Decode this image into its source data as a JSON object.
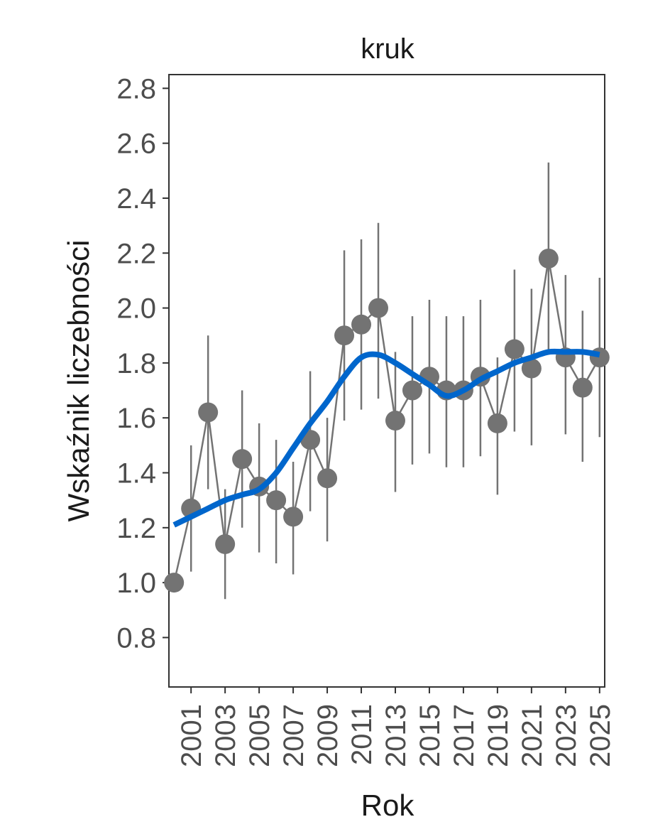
{
  "chart_data": {
    "type": "line",
    "title": "kruk",
    "xlabel": "Rok",
    "ylabel": "Wskaźnik liczebności",
    "xlim": [
      1999.7,
      2025.3
    ],
    "ylim": [
      0.62,
      2.85
    ],
    "x_ticks": [
      2001,
      2003,
      2005,
      2007,
      2009,
      2011,
      2013,
      2015,
      2017,
      2019,
      2021,
      2023,
      2025
    ],
    "x_tick_labels": [
      "2001",
      "2003",
      "2005",
      "2007",
      "2009",
      "2011",
      "2013",
      "2015",
      "2017",
      "2019",
      "2021",
      "2023",
      "2025"
    ],
    "y_ticks": [
      0.8,
      1.0,
      1.2,
      1.4,
      1.6,
      1.8,
      2.0,
      2.2,
      2.4,
      2.6,
      2.8
    ],
    "y_tick_labels": [
      "0.8",
      "1.0",
      "1.2",
      "1.4",
      "1.6",
      "1.8",
      "2.0",
      "2.2",
      "2.4",
      "2.6",
      "2.8"
    ],
    "grid": false,
    "series": [
      {
        "x": [
          2000,
          2001,
          2002,
          2003,
          2004,
          2005,
          2006,
          2007,
          2008,
          2009,
          2010,
          2011,
          2012,
          2013,
          2014,
          2015,
          2016,
          2017,
          2018,
          2019,
          2020,
          2021,
          2022,
          2023,
          2024,
          2025
        ],
        "y": [
          1.0,
          1.27,
          1.62,
          1.14,
          1.45,
          1.35,
          1.3,
          1.24,
          1.52,
          1.38,
          1.9,
          1.94,
          2.0,
          1.59,
          1.7,
          1.75,
          1.7,
          1.7,
          1.75,
          1.58,
          1.85,
          1.78,
          2.18,
          1.82,
          1.71,
          1.82
        ],
        "lower": [
          null,
          1.04,
          1.34,
          0.94,
          1.2,
          1.11,
          1.07,
          1.03,
          1.26,
          1.15,
          1.59,
          1.63,
          1.67,
          1.33,
          1.43,
          1.47,
          1.42,
          1.42,
          1.46,
          1.32,
          1.55,
          1.5,
          1.83,
          1.54,
          1.44,
          1.53
        ],
        "upper": [
          null,
          1.5,
          1.9,
          1.34,
          1.7,
          1.58,
          1.52,
          1.44,
          1.77,
          1.6,
          2.21,
          2.25,
          2.31,
          1.84,
          1.97,
          2.03,
          1.97,
          1.97,
          2.03,
          1.82,
          2.14,
          2.07,
          2.53,
          2.12,
          1.99,
          2.11
        ],
        "color": "#737373"
      }
    ],
    "trend": {
      "x": [
        2000,
        2001,
        2002,
        2003,
        2004,
        2005,
        2006,
        2007,
        2008,
        2009,
        2010,
        2011,
        2012,
        2013,
        2014,
        2015,
        2016,
        2017,
        2018,
        2019,
        2020,
        2021,
        2022,
        2023,
        2024,
        2025
      ],
      "y": [
        1.21,
        1.24,
        1.27,
        1.3,
        1.32,
        1.34,
        1.4,
        1.49,
        1.58,
        1.66,
        1.75,
        1.82,
        1.83,
        1.8,
        1.76,
        1.72,
        1.68,
        1.7,
        1.74,
        1.77,
        1.8,
        1.82,
        1.84,
        1.84,
        1.84,
        1.83
      ],
      "color": "#0066cc"
    }
  }
}
